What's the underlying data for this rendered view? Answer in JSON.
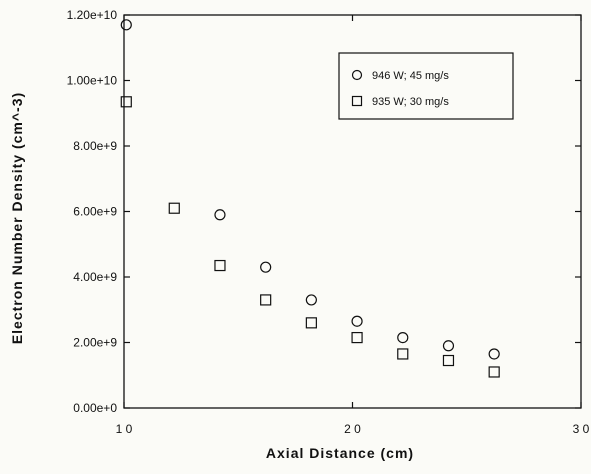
{
  "chart_data": {
    "type": "scatter",
    "xlabel": "Axial Distance (cm)",
    "ylabel": "Electron Number Density (cm^-3)",
    "xlim": [
      10,
      30
    ],
    "ylim": [
      0,
      12000000000
    ],
    "x_ticks": [
      10,
      20,
      30
    ],
    "x_tick_labels": [
      "1 0",
      "2 0",
      "3 0"
    ],
    "y_ticks": [
      0,
      2000000000,
      4000000000,
      6000000000,
      8000000000,
      10000000000,
      12000000000
    ],
    "y_tick_labels": [
      "0.00e+0",
      "2.00e+9",
      "4.00e+9",
      "6.00e+9",
      "8.00e+9",
      "1.00e+10",
      "1.20e+10"
    ],
    "grid": false,
    "legend_position": "top-right",
    "series": [
      {
        "name": "946 W; 45 mg/s",
        "marker": "circle",
        "x": [
          10.1,
          14.2,
          16.2,
          18.2,
          20.2,
          22.2,
          24.2,
          26.2
        ],
        "y": [
          11700000000,
          5900000000,
          4300000000,
          3300000000,
          2650000000,
          2150000000,
          1900000000,
          1650000000
        ]
      },
      {
        "name": "935 W; 30 mg/s",
        "marker": "square",
        "x": [
          10.1,
          12.2,
          14.2,
          16.2,
          18.2,
          20.2,
          22.2,
          24.2,
          26.2
        ],
        "y": [
          9350000000,
          6100000000,
          4350000000,
          3300000000,
          2600000000,
          2150000000,
          1650000000,
          1450000000,
          1100000000
        ]
      }
    ]
  }
}
